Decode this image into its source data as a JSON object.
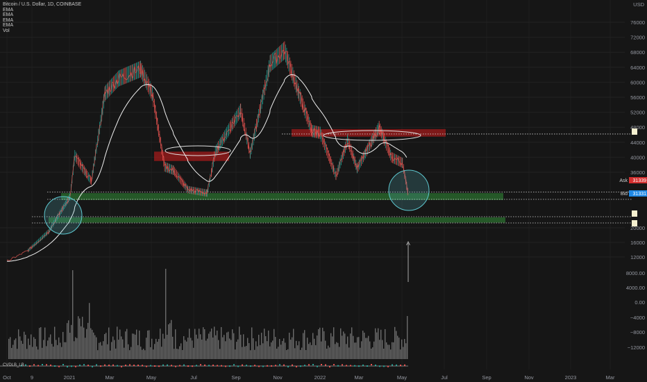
{
  "legend": {
    "symbol": "Bitcoin / U.S. Dollar, 1D, COINBASE",
    "indicators": [
      "EMA",
      "EMA",
      "EMA",
      "EMA",
      "Vol"
    ]
  },
  "cvd_label": "CVDLB_LB",
  "price_scale": {
    "currency": "USD",
    "ticks": [
      {
        "label": "76000",
        "value": 76000
      },
      {
        "label": "72000",
        "value": 72000
      },
      {
        "label": "68000",
        "value": 68000
      },
      {
        "label": "64000",
        "value": 64000
      },
      {
        "label": "60000",
        "value": 60000
      },
      {
        "label": "56000",
        "value": 56000
      },
      {
        "label": "52000",
        "value": 52000
      },
      {
        "label": "48000",
        "value": 48000
      },
      {
        "label": "44000",
        "value": 44000
      },
      {
        "label": "40000",
        "value": 40000
      },
      {
        "label": "36000",
        "value": 36000
      },
      {
        "label": "20000",
        "value": 20000
      },
      {
        "label": "16000",
        "value": 16000
      },
      {
        "label": "12000",
        "value": 12000
      }
    ],
    "ask_label": "Ask",
    "ask_price": "31339",
    "bid_label": "Bid",
    "bid_price": "31331"
  },
  "lower_scale": [
    {
      "label": "8000.00"
    },
    {
      "label": "4000.00"
    },
    {
      "label": "0.00"
    },
    {
      "label": "−4000"
    },
    {
      "label": "−8000"
    },
    {
      "label": "−12000"
    }
  ],
  "time_axis": [
    "Oct",
    "9",
    "2021",
    "Mar",
    "May",
    "Jul",
    "Sep",
    "Nov",
    "2022",
    "Mar",
    "May",
    "Jul",
    "Sep",
    "Nov",
    "2023",
    "Mar"
  ],
  "colors": {
    "background": "#161616",
    "up": "#26a69a",
    "down": "#ef5350",
    "demand_zone": "#2e7d32",
    "supply_zone": "#b71c1c",
    "highlight_circle": "#5ec8d0",
    "ema_white": "#f0f0f0",
    "volume": "#8a8a8a"
  },
  "chart_data": {
    "type": "line",
    "title": "Bitcoin / U.S. Dollar, 1D, COINBASE",
    "ylabel": "USD",
    "ylim": [
      8000,
      78000
    ],
    "x": [
      "2020-10-01",
      "2020-11-01",
      "2020-12-01",
      "2021-01-01",
      "2021-01-08",
      "2021-02-01",
      "2021-02-21",
      "2021-03-13",
      "2021-04-14",
      "2021-05-01",
      "2021-05-19",
      "2021-06-01",
      "2021-06-22",
      "2021-07-20",
      "2021-08-01",
      "2021-09-07",
      "2021-09-21",
      "2021-10-20",
      "2021-11-10",
      "2021-12-01",
      "2021-12-20",
      "2022-01-01",
      "2022-01-24",
      "2022-02-10",
      "2022-02-24",
      "2022-03-28",
      "2022-04-15",
      "2022-05-01",
      "2022-05-09"
    ],
    "series": [
      {
        "values": [
          10800,
          13800,
          19000,
          29000,
          40500,
          33500,
          57000,
          61000,
          63500,
          57000,
          37500,
          36500,
          31000,
          30000,
          41500,
          52500,
          41000,
          65000,
          68500,
          57000,
          47000,
          46500,
          35000,
          44500,
          37000,
          48000,
          40000,
          38500,
          30000
        ]
      }
    ],
    "zones": [
      {
        "kind": "demand",
        "low": 28000,
        "high": 30000
      },
      {
        "kind": "demand",
        "low": 21500,
        "high": 23000
      },
      {
        "kind": "supply",
        "low": 39000,
        "high": 41500
      },
      {
        "kind": "supply",
        "low": 45500,
        "high": 47500
      }
    ],
    "grid": true,
    "legend_position": "top-left"
  }
}
